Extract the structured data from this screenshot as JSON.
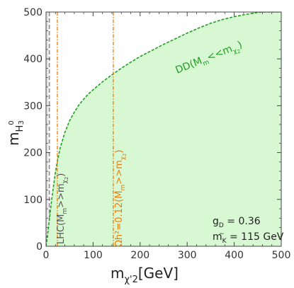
{
  "chart_data": {
    "type": "area",
    "xlabel": "m",
    "xlabel_sub": "χ'2",
    "xlabel_unit": "[GeV]",
    "ylabel": "m",
    "ylabel_sub": "H",
    "ylabel_sup": "0",
    "ylabel_sub2": "3",
    "xlim": [
      0,
      500
    ],
    "ylim": [
      0,
      500
    ],
    "xticks": [
      0,
      100,
      200,
      300,
      400,
      500
    ],
    "yticks": [
      0,
      100,
      200,
      300,
      400,
      500
    ],
    "x_minor_step": 20,
    "y_minor_step": 20,
    "colors": {
      "allowed_fill": "#d7f8d3",
      "dd_curve": "#1fa01f",
      "lhc_line": "#f07a00",
      "relic_line": "#f07a00",
      "grey_band": "#e6e6e6",
      "grey_dashed": "#8f8f8f"
    },
    "series": [
      {
        "name": "DD(M_m<<m_χ2)",
        "kind": "dashed-curve-boundary",
        "x": [
          0,
          4,
          8,
          12,
          16,
          20,
          25,
          30,
          40,
          50,
          60,
          70,
          80,
          90,
          100,
          120,
          140,
          160,
          180,
          200,
          225,
          250,
          275,
          300,
          325,
          350,
          375,
          400,
          425,
          450,
          460,
          470,
          485,
          500
        ],
        "y": [
          0,
          30,
          65,
          100,
          130,
          158,
          186,
          210,
          243,
          268,
          286,
          302,
          314,
          325,
          334,
          351,
          366,
          380,
          393,
          405,
          418,
          431,
          443,
          455,
          466,
          476,
          484,
          490,
          495,
          499,
          500,
          500,
          500,
          500
        ]
      },
      {
        "name": "LHC(M_m>>m_χ2)",
        "kind": "vertical-line",
        "x": 24
      },
      {
        "name": "Ωh²=0.12(M_m>>m_χ2)",
        "kind": "vertical-line",
        "x": 143
      },
      {
        "name": "grey-exclusion",
        "kind": "vertical-band",
        "x": [
          0,
          5
        ],
        "dashed_x": 7
      }
    ],
    "annotations": {
      "dd_label_main": "DD(M",
      "dd_label_sub1": "m",
      "dd_label_mid": "<<m",
      "dd_label_sub2": "χ",
      "dd_label_sub3": "2",
      "dd_label_end": ")",
      "lhc_label_main": "LHC(M",
      "lhc_label_sub1": "m",
      "lhc_label_mid": ">>m",
      "lhc_label_sub2": "χ",
      "lhc_label_sub3": "2",
      "lhc_label_end": ")",
      "relic_label_main": "Ωh²=0.12(M",
      "relic_label_sub1": "m",
      "relic_label_mid": ">>m",
      "relic_label_sub2": "χ",
      "relic_label_sub3": "2",
      "relic_label_end": ")",
      "gd_label": "g",
      "gd_sub": "D",
      "gd_value": " = 0.36",
      "mk_label": "m",
      "mk_sub": "K",
      "mk_tilde": "~",
      "mk_value": " = 115 GeV"
    }
  }
}
